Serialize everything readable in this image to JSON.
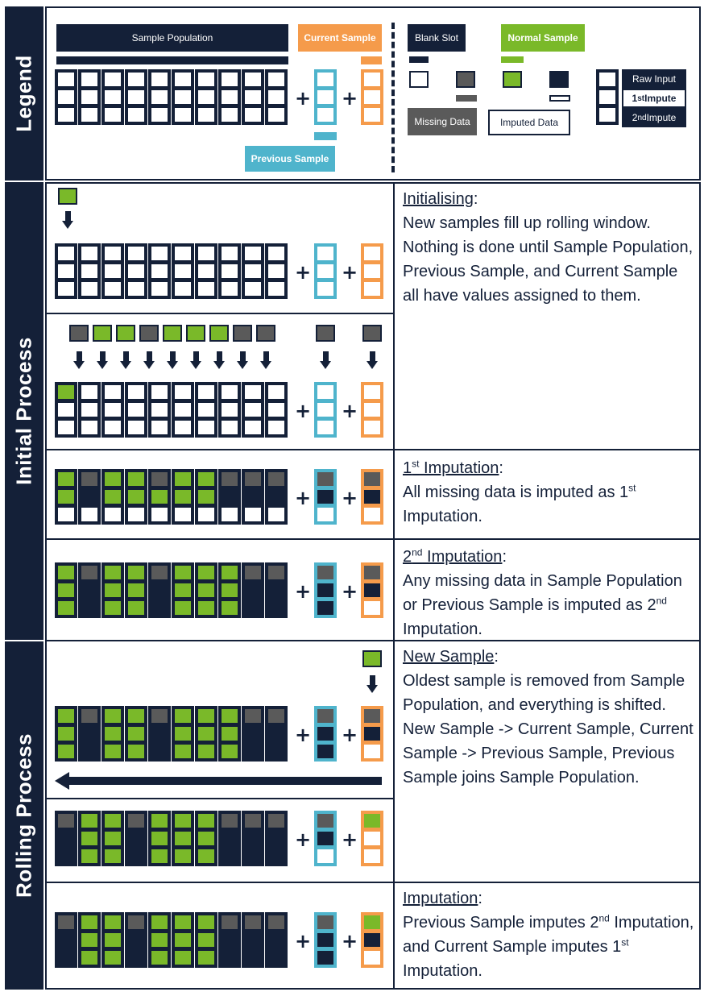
{
  "sections": {
    "legend": "Legend",
    "initial": "Initial Process",
    "rolling": "Rolling Process"
  },
  "legend": {
    "sample_population": "Sample Population",
    "current_sample": "Current Sample",
    "previous_sample": "Previous Sample",
    "blank_slot": "Blank Slot",
    "normal_sample": "Normal Sample",
    "missing_data": "Missing Data",
    "imputed_data": "Imputed Data",
    "raw_input": "Raw Input",
    "first_impute": "1st Impute",
    "second_impute": "2nd Impute"
  },
  "descriptions": {
    "initialising_title": "Initialising",
    "initialising_text": "New samples fill up rolling window. Nothing is done until Sample Population, Previous Sample, and Current Sample all have values assigned to them.",
    "first_imputation_title": "1st Imputation",
    "first_imputation_text": "All missing data is imputed as 1st Imputation.",
    "second_imputation_title": "2nd Imputation",
    "second_imputation_text": "Any missing data in Sample Population or Previous Sample is imputed as 2nd Imputation.",
    "new_sample_title": "New Sample",
    "new_sample_text": "Oldest sample is removed from Sample Population, and everything is shifted. New Sample -> Current Sample, Current Sample -> Previous Sample, Previous Sample joins Sample Population.",
    "imputation_title": "Imputation",
    "imputation_text": "Previous Sample imputes 2nd Imputation, and Current Sample imputes 1st Imputation."
  },
  "colors": {
    "navy": "#142038",
    "green": "#7ab929",
    "grey": "#5a5a5a",
    "orange": "#f59b4b",
    "blue": "#4fb4cc"
  },
  "grid_states": {
    "row1": {
      "pop": [
        "eee",
        "eee",
        "eee",
        "eee",
        "eee",
        "eee",
        "eee",
        "eee",
        "eee",
        "eee"
      ],
      "prev": "eee",
      "cur": "eee"
    },
    "row2": {
      "pop": [
        "gee",
        "eee",
        "eee",
        "eee",
        "eee",
        "eee",
        "eee",
        "eee",
        "eee",
        "eee"
      ],
      "prev": "eee",
      "cur": "eee",
      "incoming": [
        "m",
        "g",
        "g",
        "m",
        "g",
        "g",
        "g",
        "m",
        "m"
      ],
      "incoming_prev": "m",
      "incoming_cur": "m"
    },
    "row3": {
      "pop": [
        "gge",
        "mfe",
        "gge",
        "gge",
        "mge",
        "gge",
        "gge",
        "mfe",
        "mfe",
        "mfe"
      ],
      "prev": "mfe",
      "cur": "mfe"
    },
    "row4": {
      "pop": [
        "ggg",
        "mff",
        "ggg",
        "ggg",
        "mff",
        "ggg",
        "ggg",
        "ggg",
        "mff",
        "mff"
      ],
      "prev": "mff",
      "cur": "mfe"
    },
    "row5": {
      "pop": [
        "ggg",
        "mff",
        "ggg",
        "ggg",
        "mff",
        "ggg",
        "ggg",
        "ggg",
        "mff",
        "mff"
      ],
      "prev": "mff",
      "cur": "mfe",
      "incoming_cur": "g"
    },
    "row6": {
      "pop": [
        "mff",
        "ggg",
        "ggg",
        "mff",
        "ggg",
        "ggg",
        "ggg",
        "mff",
        "mff",
        "mff"
      ],
      "prev": "mfe",
      "cur": "gee"
    },
    "row7": {
      "pop": [
        "mff",
        "ggg",
        "ggg",
        "mff",
        "ggg",
        "ggg",
        "ggg",
        "mff",
        "mff",
        "mff"
      ],
      "prev": "mff",
      "cur": "gfe"
    }
  }
}
